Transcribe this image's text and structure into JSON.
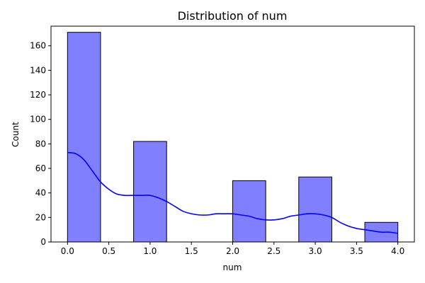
{
  "chart_data": {
    "type": "bar",
    "title": "Distribution of num",
    "xlabel": "num",
    "ylabel": "Count",
    "xlim": [
      -0.2,
      4.2
    ],
    "ylim": [
      0,
      176
    ],
    "xticks": [
      "0.0",
      "0.5",
      "1.0",
      "1.5",
      "2.0",
      "2.5",
      "3.0",
      "3.5",
      "4.0"
    ],
    "yticks": [
      "0",
      "20",
      "40",
      "60",
      "80",
      "100",
      "120",
      "140",
      "160"
    ],
    "bins": [
      {
        "x0": 0.0,
        "x1": 0.4,
        "value": 171
      },
      {
        "x0": 0.4,
        "x1": 0.8,
        "value": 0
      },
      {
        "x0": 0.8,
        "x1": 1.2,
        "value": 82
      },
      {
        "x0": 1.2,
        "x1": 1.6,
        "value": 0
      },
      {
        "x0": 1.6,
        "x1": 2.0,
        "value": 0
      },
      {
        "x0": 2.0,
        "x1": 2.4,
        "value": 50
      },
      {
        "x0": 2.4,
        "x1": 2.8,
        "value": 0
      },
      {
        "x0": 2.8,
        "x1": 3.2,
        "value": 53
      },
      {
        "x0": 3.2,
        "x1": 3.6,
        "value": 0
      },
      {
        "x0": 3.6,
        "x1": 4.0,
        "value": 16
      }
    ],
    "kde": {
      "x": [
        0.0,
        0.1,
        0.2,
        0.3,
        0.4,
        0.5,
        0.6,
        0.7,
        0.8,
        0.9,
        1.0,
        1.1,
        1.2,
        1.3,
        1.4,
        1.5,
        1.6,
        1.7,
        1.8,
        1.9,
        2.0,
        2.1,
        2.2,
        2.3,
        2.4,
        2.5,
        2.6,
        2.7,
        2.8,
        2.9,
        3.0,
        3.1,
        3.2,
        3.3,
        3.4,
        3.5,
        3.6,
        3.7,
        3.8,
        3.9,
        4.0
      ],
      "y": [
        73,
        72,
        67,
        58,
        49,
        43,
        39,
        38,
        38,
        38,
        38,
        36,
        33,
        29,
        25,
        23,
        22,
        22,
        23,
        23,
        23,
        22,
        21,
        19,
        18,
        18,
        19,
        21,
        22,
        23,
        23,
        22,
        20,
        16,
        13,
        11,
        10,
        9,
        8,
        8,
        7
      ]
    },
    "colors": {
      "bar_fill": "#8080ff",
      "bar_edge": "#000000",
      "kde_line": "#0000ff"
    },
    "grid": false,
    "legend": "none"
  }
}
